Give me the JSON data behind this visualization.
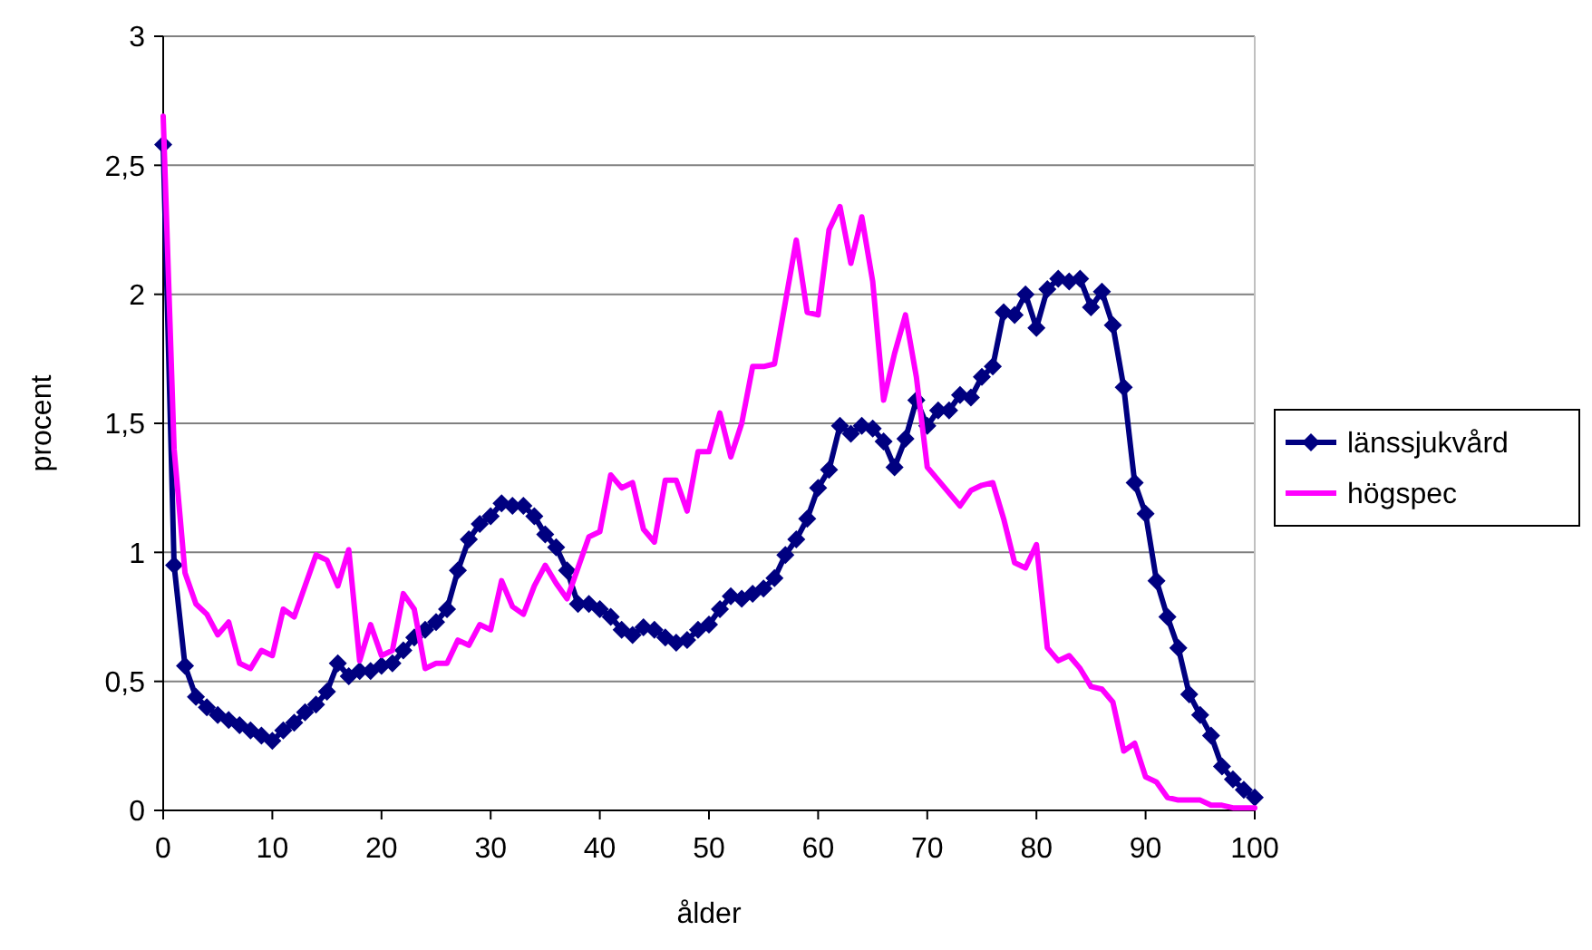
{
  "chart_data": {
    "type": "line",
    "xlabel": "ålder",
    "ylabel": "procent",
    "x": [
      0,
      1,
      2,
      3,
      4,
      5,
      6,
      7,
      8,
      9,
      10,
      11,
      12,
      13,
      14,
      15,
      16,
      17,
      18,
      19,
      20,
      21,
      22,
      23,
      24,
      25,
      26,
      27,
      28,
      29,
      30,
      31,
      32,
      33,
      34,
      35,
      36,
      37,
      38,
      39,
      40,
      41,
      42,
      43,
      44,
      45,
      46,
      47,
      48,
      49,
      50,
      51,
      52,
      53,
      54,
      55,
      56,
      57,
      58,
      59,
      60,
      61,
      62,
      63,
      64,
      65,
      66,
      67,
      68,
      69,
      70,
      71,
      72,
      73,
      74,
      75,
      76,
      77,
      78,
      79,
      80,
      81,
      82,
      83,
      84,
      85,
      86,
      87,
      88,
      89,
      90,
      91,
      92,
      93,
      94,
      95,
      96,
      97,
      98,
      99,
      100
    ],
    "xlim": [
      0,
      100
    ],
    "xticks": [
      0,
      10,
      20,
      30,
      40,
      50,
      60,
      70,
      80,
      90,
      100
    ],
    "ylim": [
      0,
      3
    ],
    "yticks": [
      0,
      {
        "value": 0.5,
        "label": "0,5"
      },
      1,
      {
        "value": 1.5,
        "label": "1,5"
      },
      2,
      {
        "value": 2.5,
        "label": "2,5"
      },
      3
    ],
    "grid": "y",
    "legend": "right",
    "series": [
      {
        "name": "länssjukvård",
        "color": "#000080",
        "marker": "diamond",
        "values": [
          2.58,
          0.95,
          0.56,
          0.44,
          0.4,
          0.37,
          0.35,
          0.33,
          0.31,
          0.29,
          0.27,
          0.31,
          0.34,
          0.38,
          0.41,
          0.46,
          0.57,
          0.52,
          0.54,
          0.54,
          0.56,
          0.57,
          0.62,
          0.67,
          0.7,
          0.73,
          0.78,
          0.93,
          1.05,
          1.11,
          1.14,
          1.19,
          1.18,
          1.18,
          1.14,
          1.07,
          1.02,
          0.93,
          0.8,
          0.8,
          0.78,
          0.75,
          0.7,
          0.68,
          0.71,
          0.7,
          0.67,
          0.65,
          0.66,
          0.7,
          0.72,
          0.78,
          0.83,
          0.82,
          0.84,
          0.86,
          0.9,
          0.99,
          1.05,
          1.13,
          1.25,
          1.32,
          1.49,
          1.46,
          1.49,
          1.48,
          1.43,
          1.33,
          1.44,
          1.59,
          1.49,
          1.55,
          1.55,
          1.61,
          1.6,
          1.68,
          1.72,
          1.93,
          1.92,
          2.0,
          1.87,
          2.02,
          2.06,
          2.05,
          2.06,
          1.95,
          2.01,
          1.88,
          1.64,
          1.27,
          1.15,
          0.89,
          0.75,
          0.63,
          0.45,
          0.37,
          0.29,
          0.17,
          0.12,
          0.08,
          0.05
        ]
      },
      {
        "name": "högspec",
        "color": "#ff00ff",
        "marker": "none",
        "values": [
          2.69,
          1.4,
          0.92,
          0.8,
          0.76,
          0.68,
          0.73,
          0.57,
          0.55,
          0.62,
          0.6,
          0.78,
          0.75,
          0.87,
          0.99,
          0.97,
          0.87,
          1.01,
          0.58,
          0.72,
          0.6,
          0.62,
          0.84,
          0.78,
          0.55,
          0.57,
          0.57,
          0.66,
          0.64,
          0.72,
          0.7,
          0.89,
          0.79,
          0.76,
          0.87,
          0.95,
          0.88,
          0.82,
          0.94,
          1.06,
          1.08,
          1.3,
          1.25,
          1.27,
          1.09,
          1.04,
          1.28,
          1.28,
          1.16,
          1.39,
          1.39,
          1.54,
          1.37,
          1.5,
          1.72,
          1.72,
          1.73,
          1.97,
          2.21,
          1.93,
          1.92,
          2.25,
          2.34,
          2.12,
          2.3,
          2.05,
          1.59,
          1.77,
          1.92,
          1.68,
          1.33,
          1.28,
          1.23,
          1.18,
          1.24,
          1.26,
          1.27,
          1.13,
          0.96,
          0.94,
          1.03,
          0.63,
          0.58,
          0.6,
          0.55,
          0.48,
          0.47,
          0.42,
          0.23,
          0.26,
          0.13,
          0.11,
          0.05,
          0.04,
          0.04,
          0.04,
          0.02,
          0.02,
          0.01,
          0.01,
          0.01
        ]
      }
    ]
  }
}
